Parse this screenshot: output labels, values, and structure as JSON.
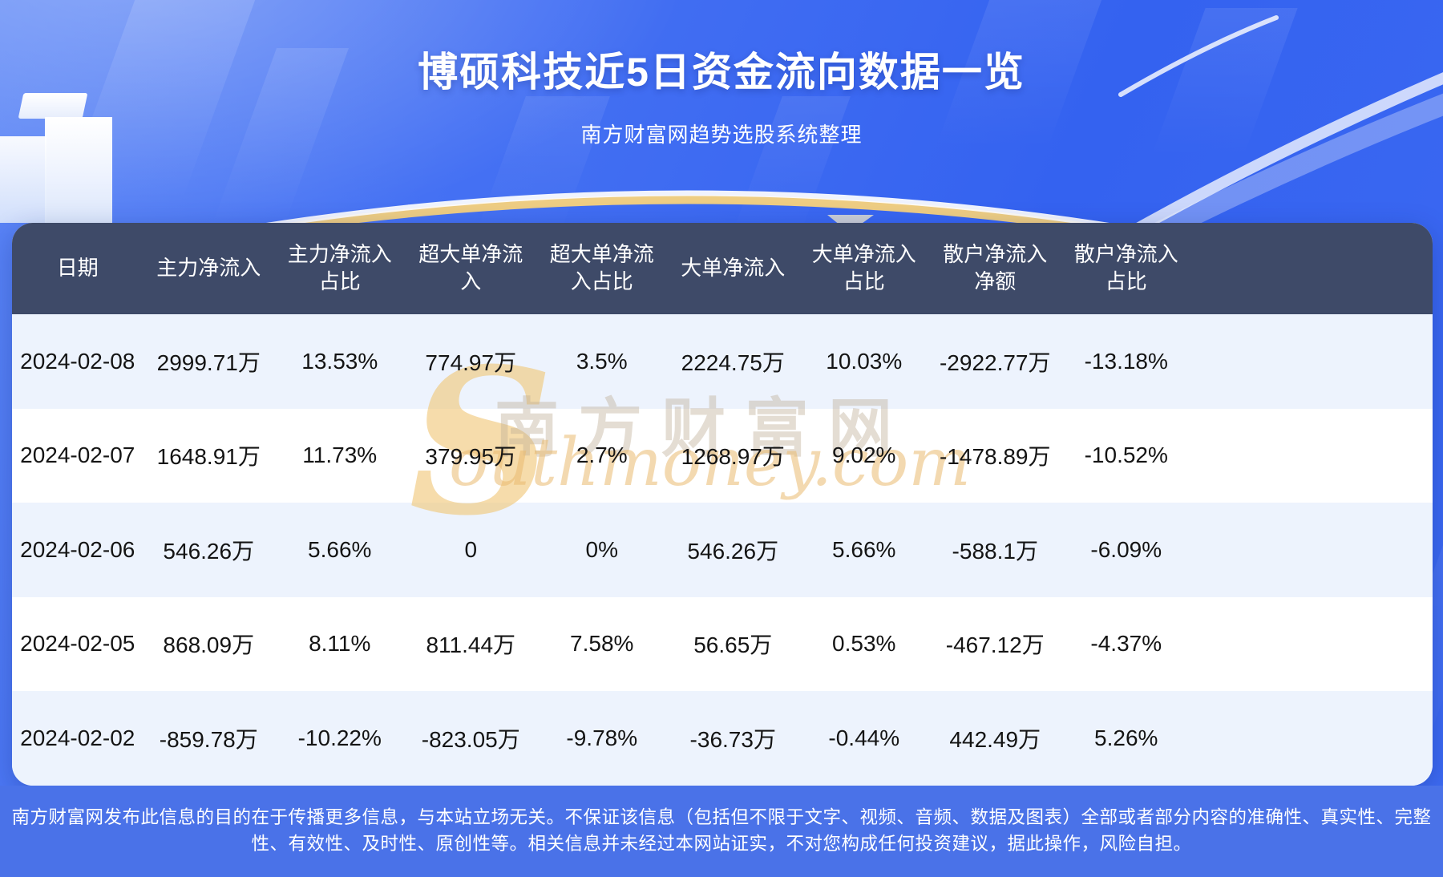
{
  "title": "博硕科技近5日资金流向数据一览",
  "subtitle": "南方财富网趋势选股系统整理",
  "watermark": {
    "s": "S",
    "cn": "南方财富网",
    "en": "outhmoney.com"
  },
  "table": {
    "headers": [
      "日期",
      "主力净流入",
      "主力净流入\n占比",
      "超大单净流\n入",
      "超大单净流\n入占比",
      "大单净流入",
      "大单净流入\n占比",
      "散户净流入\n净额",
      "散户净流入\n占比"
    ],
    "rows": [
      [
        "2024-02-08",
        "2999.71万",
        "13.53%",
        "774.97万",
        "3.5%",
        "2224.75万",
        "10.03%",
        "-2922.77万",
        "-13.18%"
      ],
      [
        "2024-02-07",
        "1648.91万",
        "11.73%",
        "379.95万",
        "2.7%",
        "1268.97万",
        "9.02%",
        "-1478.89万",
        "-10.52%"
      ],
      [
        "2024-02-06",
        "546.26万",
        "5.66%",
        "0",
        "0%",
        "546.26万",
        "5.66%",
        "-588.1万",
        "-6.09%"
      ],
      [
        "2024-02-05",
        "868.09万",
        "8.11%",
        "811.44万",
        "7.58%",
        "56.65万",
        "0.53%",
        "-467.12万",
        "-4.37%"
      ],
      [
        "2024-02-02",
        "-859.78万",
        "-10.22%",
        "-823.05万",
        "-9.78%",
        "-36.73万",
        "-0.44%",
        "442.49万",
        "5.26%"
      ]
    ]
  },
  "footer": {
    "text": "南方财富网发布此信息的目的在于传播更多信息，与本站立场无关。不保证该信息（包括但不限于文字、视频、音频、数据及图表）全部或者部分内容的准确性、真实性、完整性、有效性、及时性、原创性等。相关信息并未经过本网站证实，不对您构成任何投资建议，据此操作，风险自担。"
  },
  "colors": {
    "background_blue": "#3a66f1",
    "header_bg": "#3e4a68",
    "row_tint": "#edf3fd",
    "row_white": "#ffffff",
    "footer_bg": "#4a72e8",
    "watermark_gold": "#e8bc72",
    "title_color": "#ffffff",
    "cell_text": "#141414"
  },
  "chart_data": {
    "type": "table",
    "title": "博硕科技近5日资金流向数据一览",
    "subtitle": "南方财富网趋势选股系统整理",
    "columns": [
      "日期",
      "主力净流入",
      "主力净流入占比",
      "超大单净流入",
      "超大单净流入占比",
      "大单净流入",
      "大单净流入占比",
      "散户净流入净额",
      "散户净流入占比"
    ],
    "rows": [
      [
        "2024-02-08",
        "2999.71万",
        "13.53%",
        "774.97万",
        "3.5%",
        "2224.75万",
        "10.03%",
        "-2922.77万",
        "-13.18%"
      ],
      [
        "2024-02-07",
        "1648.91万",
        "11.73%",
        "379.95万",
        "2.7%",
        "1268.97万",
        "9.02%",
        "-1478.89万",
        "-10.52%"
      ],
      [
        "2024-02-06",
        "546.26万",
        "5.66%",
        "0",
        "0%",
        "546.26万",
        "5.66%",
        "-588.1万",
        "-6.09%"
      ],
      [
        "2024-02-05",
        "868.09万",
        "8.11%",
        "811.44万",
        "7.58%",
        "56.65万",
        "0.53%",
        "-467.12万",
        "-4.37%"
      ],
      [
        "2024-02-02",
        "-859.78万",
        "-10.22%",
        "-823.05万",
        "-9.78%",
        "-36.73万",
        "-0.44%",
        "442.49万",
        "5.26%"
      ]
    ]
  }
}
